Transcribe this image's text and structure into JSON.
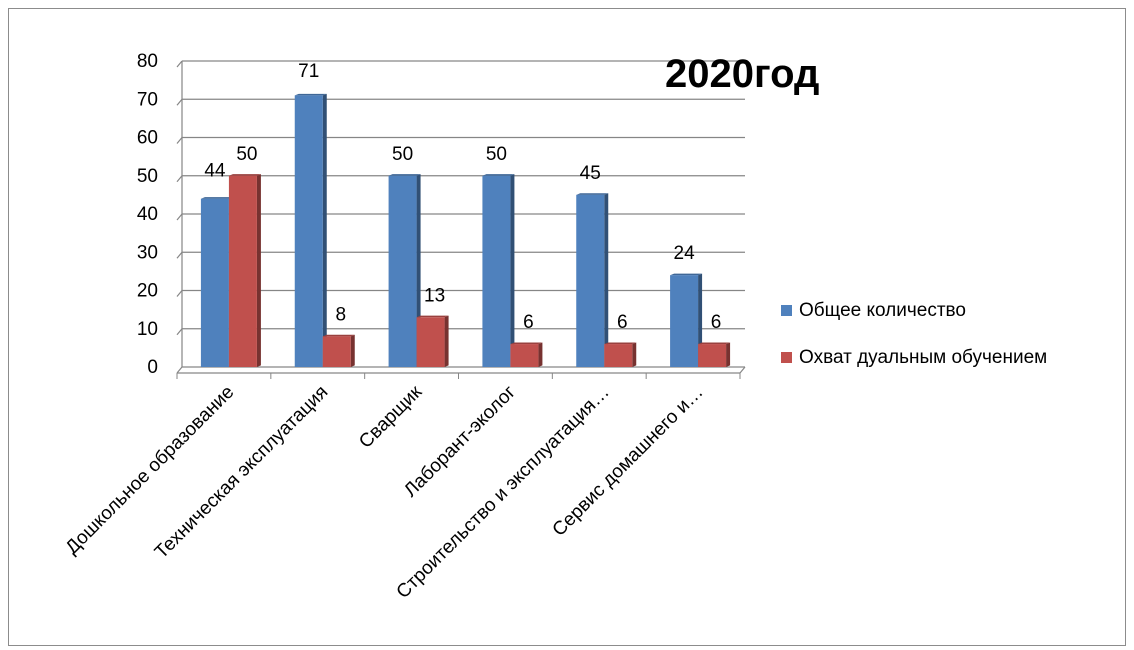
{
  "chart_data": {
    "type": "bar",
    "title": "2020год",
    "categories": [
      "Дошкольное образование",
      "Техническая эксплуатация",
      "Сварщик",
      "Лаборант-эколог",
      "Строительство и эксплуатация…",
      "Сервис домашнего и…"
    ],
    "series": [
      {
        "name": "Общее количество",
        "values": [
          44,
          71,
          50,
          50,
          45,
          24
        ],
        "color": "#4f81bd"
      },
      {
        "name": "Охват дуальным обучением",
        "values": [
          50,
          8,
          13,
          6,
          6,
          6
        ],
        "color": "#c0504d"
      }
    ],
    "ylim": [
      0,
      80
    ],
    "yticks": [
      0,
      10,
      20,
      30,
      40,
      50,
      60,
      70,
      80
    ],
    "grid": true,
    "legend_position": "right",
    "xlabel": "",
    "ylabel": ""
  }
}
